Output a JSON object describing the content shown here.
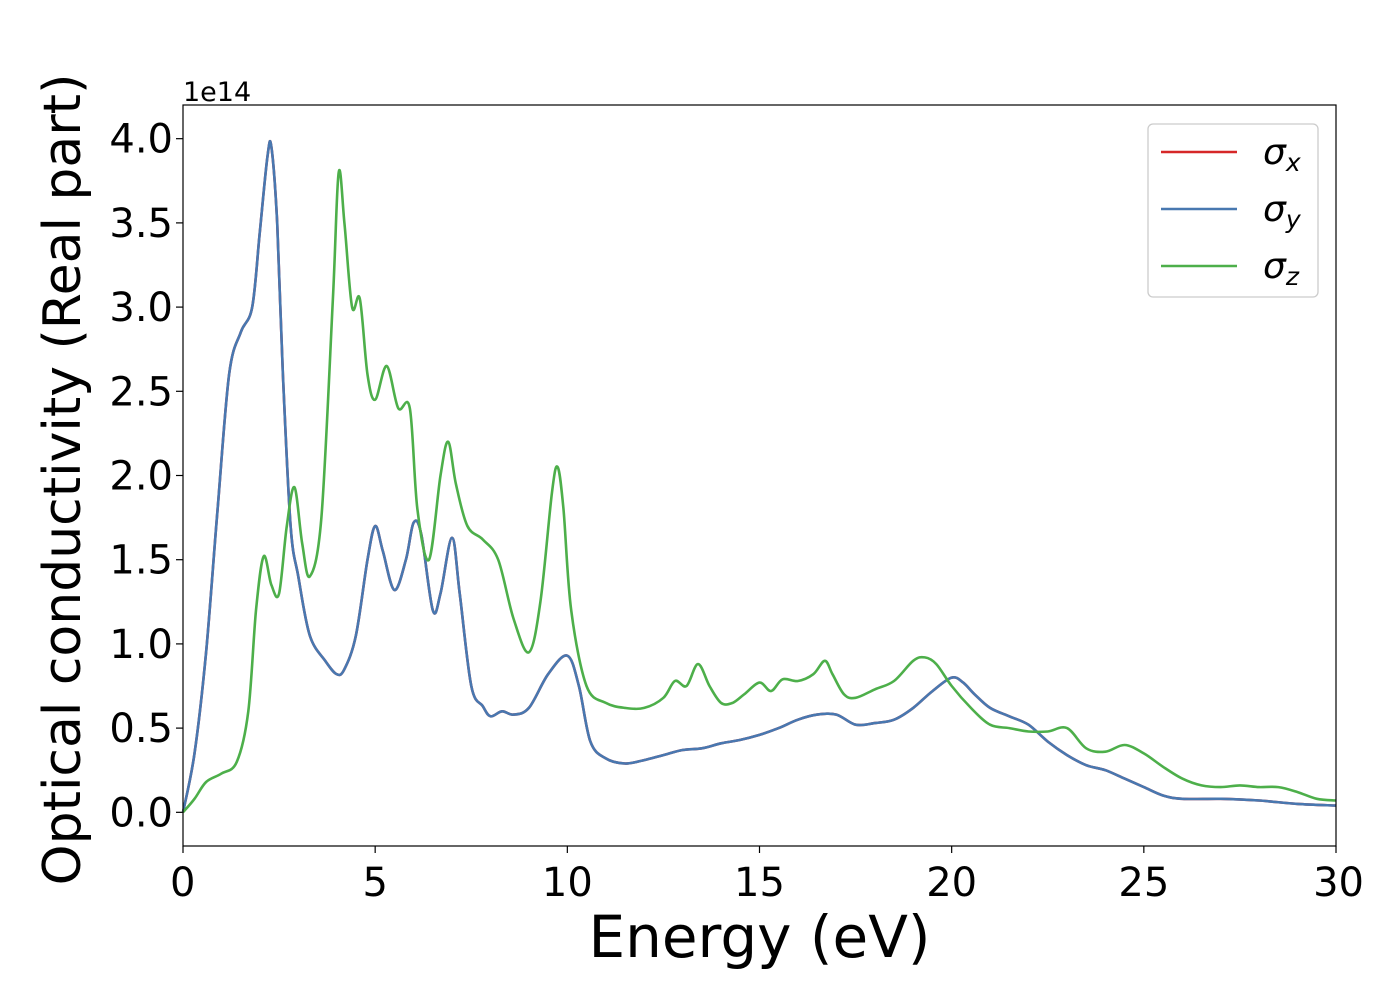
{
  "chart_data": {
    "type": "line",
    "xlabel": "Energy (eV)",
    "ylabel": "Optical conductivity (Real part)",
    "offset_label": "1e14",
    "y_scale": 100000000000000.0,
    "xlim": [
      0,
      30
    ],
    "ylim": [
      -0.2,
      4.2
    ],
    "xticks": [
      0,
      5,
      10,
      15,
      20,
      25,
      30
    ],
    "yticks": [
      0.0,
      0.5,
      1.0,
      1.5,
      2.0,
      2.5,
      3.0,
      3.5,
      4.0
    ],
    "xtick_labels": [
      "0",
      "5",
      "10",
      "15",
      "20",
      "25",
      "30"
    ],
    "ytick_labels": [
      "0.0",
      "0.5",
      "1.0",
      "1.5",
      "2.0",
      "2.5",
      "3.0",
      "3.5",
      "4.0"
    ],
    "grid": false,
    "legend_position": "top-right",
    "series": [
      {
        "name": "σx",
        "symbol": "σ",
        "subscript": "x",
        "color": "#d62728",
        "x": [
          0,
          0.3,
          0.6,
          0.9,
          1.2,
          1.5,
          1.8,
          2.0,
          2.2,
          2.3,
          2.45,
          2.6,
          2.8,
          3.0,
          3.3,
          3.7,
          4.0,
          4.2,
          4.5,
          4.8,
          5.0,
          5.2,
          5.5,
          5.8,
          6.0,
          6.2,
          6.5,
          6.7,
          7.0,
          7.2,
          7.5,
          7.8,
          8.0,
          8.3,
          8.6,
          9.0,
          9.5,
          10.0,
          10.3,
          10.6,
          11.0,
          11.5,
          12.0,
          12.5,
          13.0,
          13.5,
          14.0,
          14.5,
          15.0,
          15.5,
          16.0,
          16.5,
          17.0,
          17.5,
          18.0,
          18.5,
          19.0,
          19.5,
          20.0,
          20.3,
          20.6,
          21.0,
          21.5,
          22.0,
          22.5,
          23.0,
          23.5,
          24.0,
          24.5,
          25.0,
          25.5,
          26.0,
          27.0,
          28.0,
          29.0,
          30.0
        ],
        "y": [
          0,
          0.35,
          0.95,
          1.8,
          2.6,
          2.85,
          3.0,
          3.45,
          3.9,
          3.95,
          3.5,
          2.6,
          1.7,
          1.4,
          1.05,
          0.9,
          0.82,
          0.85,
          1.05,
          1.5,
          1.7,
          1.55,
          1.32,
          1.5,
          1.72,
          1.65,
          1.2,
          1.3,
          1.63,
          1.3,
          0.75,
          0.63,
          0.57,
          0.6,
          0.58,
          0.62,
          0.82,
          0.93,
          0.75,
          0.42,
          0.32,
          0.29,
          0.31,
          0.34,
          0.37,
          0.38,
          0.41,
          0.43,
          0.46,
          0.5,
          0.55,
          0.58,
          0.58,
          0.52,
          0.53,
          0.55,
          0.62,
          0.72,
          0.8,
          0.77,
          0.7,
          0.62,
          0.57,
          0.52,
          0.42,
          0.34,
          0.28,
          0.25,
          0.2,
          0.15,
          0.1,
          0.08,
          0.08,
          0.07,
          0.05,
          0.04
        ]
      },
      {
        "name": "σy",
        "symbol": "σ",
        "subscript": "y",
        "color": "#4878b0",
        "x": [
          0,
          0.3,
          0.6,
          0.9,
          1.2,
          1.5,
          1.8,
          2.0,
          2.2,
          2.3,
          2.45,
          2.6,
          2.8,
          3.0,
          3.3,
          3.7,
          4.0,
          4.2,
          4.5,
          4.8,
          5.0,
          5.2,
          5.5,
          5.8,
          6.0,
          6.2,
          6.5,
          6.7,
          7.0,
          7.2,
          7.5,
          7.8,
          8.0,
          8.3,
          8.6,
          9.0,
          9.5,
          10.0,
          10.3,
          10.6,
          11.0,
          11.5,
          12.0,
          12.5,
          13.0,
          13.5,
          14.0,
          14.5,
          15.0,
          15.5,
          16.0,
          16.5,
          17.0,
          17.5,
          18.0,
          18.5,
          19.0,
          19.5,
          20.0,
          20.3,
          20.6,
          21.0,
          21.5,
          22.0,
          22.5,
          23.0,
          23.5,
          24.0,
          24.5,
          25.0,
          25.5,
          26.0,
          27.0,
          28.0,
          29.0,
          30.0
        ],
        "y": [
          0,
          0.35,
          0.95,
          1.8,
          2.6,
          2.85,
          3.0,
          3.45,
          3.9,
          3.95,
          3.5,
          2.6,
          1.7,
          1.4,
          1.05,
          0.9,
          0.82,
          0.85,
          1.05,
          1.5,
          1.7,
          1.55,
          1.32,
          1.5,
          1.72,
          1.65,
          1.2,
          1.3,
          1.63,
          1.3,
          0.75,
          0.63,
          0.57,
          0.6,
          0.58,
          0.62,
          0.82,
          0.93,
          0.75,
          0.42,
          0.32,
          0.29,
          0.31,
          0.34,
          0.37,
          0.38,
          0.41,
          0.43,
          0.46,
          0.5,
          0.55,
          0.58,
          0.58,
          0.52,
          0.53,
          0.55,
          0.62,
          0.72,
          0.8,
          0.77,
          0.7,
          0.62,
          0.57,
          0.52,
          0.42,
          0.34,
          0.28,
          0.25,
          0.2,
          0.15,
          0.1,
          0.08,
          0.08,
          0.07,
          0.05,
          0.04
        ]
      },
      {
        "name": "σz",
        "symbol": "σ",
        "subscript": "z",
        "color": "#4daf4a",
        "x": [
          0,
          0.3,
          0.6,
          1.0,
          1.4,
          1.7,
          1.9,
          2.1,
          2.3,
          2.5,
          2.7,
          2.9,
          3.1,
          3.3,
          3.6,
          3.9,
          4.05,
          4.2,
          4.4,
          4.6,
          4.8,
          5.0,
          5.3,
          5.6,
          5.9,
          6.1,
          6.4,
          6.7,
          6.9,
          7.1,
          7.4,
          7.8,
          8.2,
          8.6,
          9.0,
          9.3,
          9.6,
          9.75,
          9.9,
          10.1,
          10.5,
          11.0,
          11.5,
          12.0,
          12.5,
          12.8,
          13.1,
          13.4,
          13.7,
          14.0,
          14.3,
          14.6,
          15.0,
          15.3,
          15.6,
          16.0,
          16.4,
          16.7,
          16.9,
          17.2,
          17.5,
          18.0,
          18.5,
          19.0,
          19.3,
          19.6,
          20.0,
          20.5,
          21.0,
          21.5,
          22.0,
          22.5,
          23.0,
          23.5,
          24.0,
          24.5,
          25.0,
          25.5,
          26.0,
          26.5,
          27.0,
          27.5,
          28.0,
          28.5,
          29.0,
          29.5,
          30.0
        ],
        "y": [
          0,
          0.08,
          0.18,
          0.23,
          0.3,
          0.6,
          1.2,
          1.52,
          1.35,
          1.3,
          1.7,
          1.93,
          1.6,
          1.4,
          1.75,
          3.05,
          3.8,
          3.5,
          3.0,
          3.05,
          2.6,
          2.45,
          2.65,
          2.4,
          2.4,
          1.8,
          1.5,
          2.0,
          2.2,
          1.95,
          1.7,
          1.62,
          1.5,
          1.15,
          0.95,
          1.25,
          1.9,
          2.05,
          1.8,
          1.2,
          0.75,
          0.65,
          0.62,
          0.62,
          0.68,
          0.78,
          0.75,
          0.88,
          0.75,
          0.65,
          0.65,
          0.7,
          0.77,
          0.72,
          0.79,
          0.78,
          0.82,
          0.9,
          0.82,
          0.7,
          0.68,
          0.73,
          0.78,
          0.9,
          0.92,
          0.88,
          0.75,
          0.62,
          0.52,
          0.5,
          0.48,
          0.48,
          0.5,
          0.38,
          0.36,
          0.4,
          0.35,
          0.27,
          0.2,
          0.16,
          0.15,
          0.16,
          0.15,
          0.15,
          0.12,
          0.08,
          0.07
        ]
      }
    ]
  }
}
